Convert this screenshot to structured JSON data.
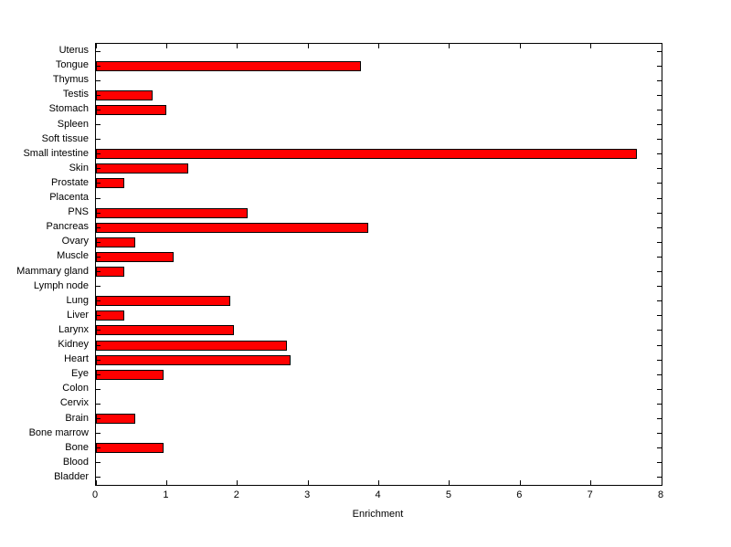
{
  "figure": {
    "background_color": "#ffffff",
    "axis_color": "#000000",
    "bar_fill_color": "#ff0000",
    "bar_edge_color": "#000000"
  },
  "chart_data": {
    "type": "bar",
    "orientation": "horizontal",
    "title": "",
    "xlabel": "Enrichment",
    "ylabel": "",
    "xlim": [
      0,
      8
    ],
    "xticks": [
      0,
      1,
      2,
      3,
      4,
      5,
      6,
      7,
      8
    ],
    "grid": false,
    "legend": null,
    "categories": [
      "Uterus",
      "Tongue",
      "Thymus",
      "Testis",
      "Stomach",
      "Spleen",
      "Soft tissue",
      "Small intestine",
      "Skin",
      "Prostate",
      "Placenta",
      "PNS",
      "Pancreas",
      "Ovary",
      "Muscle",
      "Mammary gland",
      "Lymph node",
      "Lung",
      "Liver",
      "Larynx",
      "Kidney",
      "Heart",
      "Eye",
      "Colon",
      "Cervix",
      "Brain",
      "Bone marrow",
      "Bone",
      "Blood",
      "Bladder"
    ],
    "values": [
      0,
      3.75,
      0,
      0.8,
      1.0,
      0,
      0,
      7.65,
      1.3,
      0.4,
      0,
      2.15,
      3.85,
      0.55,
      1.1,
      0.4,
      0,
      1.9,
      0.4,
      1.95,
      2.7,
      2.75,
      0.95,
      0,
      0,
      0.55,
      0,
      0.95,
      0,
      0
    ]
  }
}
